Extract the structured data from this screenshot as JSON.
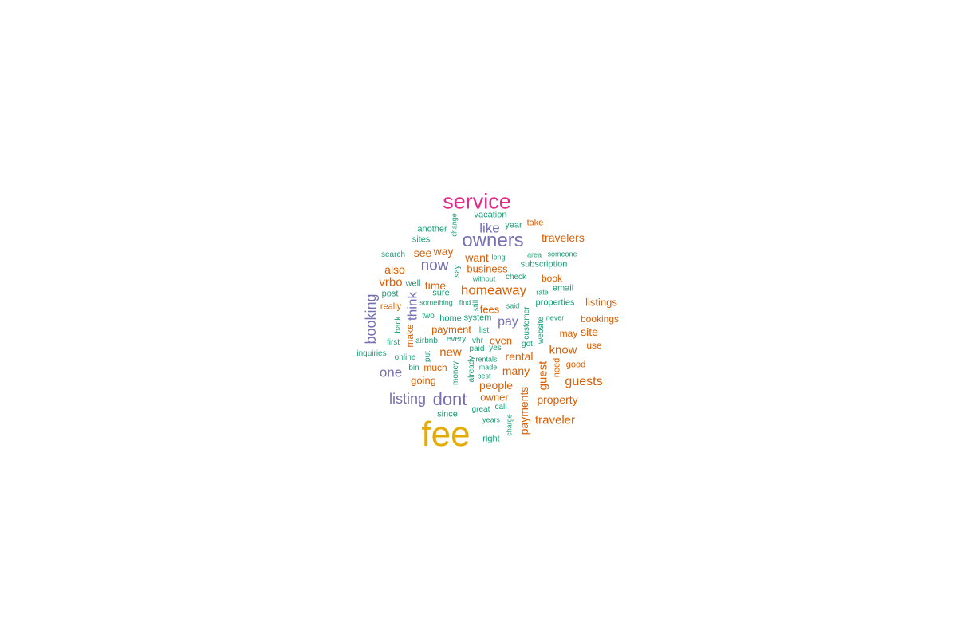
{
  "palette": {
    "orange": "#d95f02",
    "gold": "#e6ab02",
    "purple": "#7570b3",
    "teal": "#1b9e77",
    "pink": "#e7298a"
  },
  "words": [
    {
      "text": "fee",
      "color": "#e6ab02"
    },
    {
      "text": "service",
      "color": "#e7298a"
    },
    {
      "text": "owners",
      "color": "#7570b3"
    },
    {
      "text": "dont",
      "color": "#7570b3"
    },
    {
      "text": "homeaway",
      "color": "#d95f02"
    },
    {
      "text": "listing",
      "color": "#7570b3"
    },
    {
      "text": "booking",
      "color": "#7570b3"
    },
    {
      "text": "now",
      "color": "#7570b3"
    },
    {
      "text": "like",
      "color": "#7570b3"
    },
    {
      "text": "think",
      "color": "#7570b3"
    },
    {
      "text": "one",
      "color": "#7570b3"
    },
    {
      "text": "pay",
      "color": "#7570b3"
    },
    {
      "text": "guests",
      "color": "#d95f02"
    },
    {
      "text": "travelers",
      "color": "#d95f02"
    },
    {
      "text": "traveler",
      "color": "#d95f02"
    },
    {
      "text": "know",
      "color": "#d95f02"
    },
    {
      "text": "guest",
      "color": "#d95f02"
    },
    {
      "text": "payments",
      "color": "#d95f02"
    },
    {
      "text": "property",
      "color": "#d95f02"
    },
    {
      "text": "listings",
      "color": "#d95f02"
    },
    {
      "text": "rental",
      "color": "#d95f02"
    },
    {
      "text": "people",
      "color": "#d95f02"
    },
    {
      "text": "many",
      "color": "#d95f02"
    },
    {
      "text": "new",
      "color": "#d95f02"
    },
    {
      "text": "vrbo",
      "color": "#d95f02"
    },
    {
      "text": "also",
      "color": "#d95f02"
    },
    {
      "text": "want",
      "color": "#d95f02"
    },
    {
      "text": "payment",
      "color": "#d95f02"
    },
    {
      "text": "going",
      "color": "#d95f02"
    },
    {
      "text": "even",
      "color": "#d95f02"
    },
    {
      "text": "owner",
      "color": "#d95f02"
    },
    {
      "text": "time",
      "color": "#d95f02"
    },
    {
      "text": "business",
      "color": "#d95f02"
    },
    {
      "text": "see",
      "color": "#d95f02"
    },
    {
      "text": "way",
      "color": "#d95f02"
    },
    {
      "text": "site",
      "color": "#d95f02"
    },
    {
      "text": "bookings",
      "color": "#d95f02"
    },
    {
      "text": "fees",
      "color": "#d95f02"
    },
    {
      "text": "much",
      "color": "#d95f02"
    },
    {
      "text": "book",
      "color": "#d95f02"
    },
    {
      "text": "use",
      "color": "#d95f02"
    },
    {
      "text": "may",
      "color": "#d95f02"
    },
    {
      "text": "make",
      "color": "#d95f02"
    },
    {
      "text": "take",
      "color": "#d95f02"
    },
    {
      "text": "good",
      "color": "#d95f02"
    },
    {
      "text": "need",
      "color": "#d95f02"
    },
    {
      "text": "really",
      "color": "#d95f02"
    },
    {
      "text": "vacation",
      "color": "#1b9e77"
    },
    {
      "text": "year",
      "color": "#1b9e77"
    },
    {
      "text": "change",
      "color": "#1b9e77"
    },
    {
      "text": "another",
      "color": "#1b9e77"
    },
    {
      "text": "sites",
      "color": "#1b9e77"
    },
    {
      "text": "search",
      "color": "#1b9e77"
    },
    {
      "text": "long",
      "color": "#1b9e77"
    },
    {
      "text": "area",
      "color": "#1b9e77"
    },
    {
      "text": "someone",
      "color": "#1b9e77"
    },
    {
      "text": "subscription",
      "color": "#1b9e77"
    },
    {
      "text": "say",
      "color": "#1b9e77"
    },
    {
      "text": "without",
      "color": "#1b9e77"
    },
    {
      "text": "check",
      "color": "#1b9e77"
    },
    {
      "text": "well",
      "color": "#1b9e77"
    },
    {
      "text": "email",
      "color": "#1b9e77"
    },
    {
      "text": "post",
      "color": "#1b9e77"
    },
    {
      "text": "sure",
      "color": "#1b9e77"
    },
    {
      "text": "rate",
      "color": "#1b9e77"
    },
    {
      "text": "something",
      "color": "#1b9e77"
    },
    {
      "text": "find",
      "color": "#1b9e77"
    },
    {
      "text": "still",
      "color": "#1b9e77"
    },
    {
      "text": "said",
      "color": "#1b9e77"
    },
    {
      "text": "properties",
      "color": "#1b9e77"
    },
    {
      "text": "back",
      "color": "#1b9e77"
    },
    {
      "text": "two",
      "color": "#1b9e77"
    },
    {
      "text": "home",
      "color": "#1b9e77"
    },
    {
      "text": "system",
      "color": "#1b9e77"
    },
    {
      "text": "customer",
      "color": "#1b9e77"
    },
    {
      "text": "never",
      "color": "#1b9e77"
    },
    {
      "text": "website",
      "color": "#1b9e77"
    },
    {
      "text": "list",
      "color": "#1b9e77"
    },
    {
      "text": "first",
      "color": "#1b9e77"
    },
    {
      "text": "airbnb",
      "color": "#1b9e77"
    },
    {
      "text": "every",
      "color": "#1b9e77"
    },
    {
      "text": "vhr",
      "color": "#1b9e77"
    },
    {
      "text": "got",
      "color": "#1b9e77"
    },
    {
      "text": "inquiries",
      "color": "#1b9e77"
    },
    {
      "text": "put",
      "color": "#1b9e77"
    },
    {
      "text": "paid",
      "color": "#1b9e77"
    },
    {
      "text": "yes",
      "color": "#1b9e77"
    },
    {
      "text": "online",
      "color": "#1b9e77"
    },
    {
      "text": "rentals",
      "color": "#1b9e77"
    },
    {
      "text": "bin",
      "color": "#1b9e77"
    },
    {
      "text": "money",
      "color": "#1b9e77"
    },
    {
      "text": "already",
      "color": "#1b9e77"
    },
    {
      "text": "made",
      "color": "#1b9e77"
    },
    {
      "text": "best",
      "color": "#1b9e77"
    },
    {
      "text": "since",
      "color": "#1b9e77"
    },
    {
      "text": "great",
      "color": "#1b9e77"
    },
    {
      "text": "call",
      "color": "#1b9e77"
    },
    {
      "text": "years",
      "color": "#1b9e77"
    },
    {
      "text": "charge",
      "color": "#1b9e77"
    },
    {
      "text": "right",
      "color": "#1b9e77"
    }
  ]
}
